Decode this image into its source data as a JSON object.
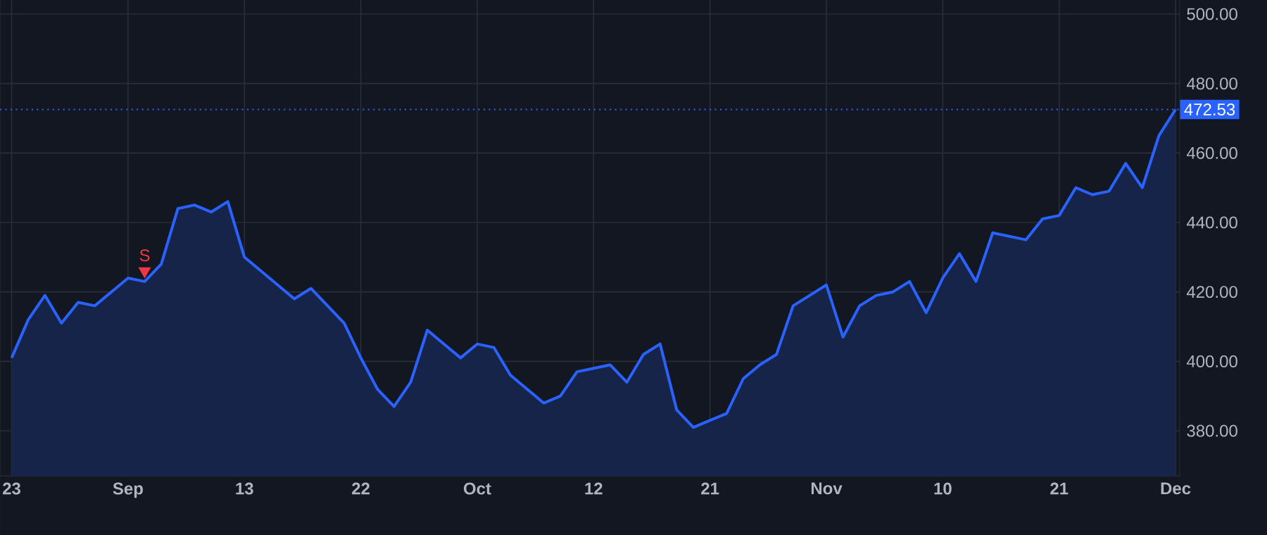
{
  "chart_data": {
    "type": "area",
    "categories": [
      "23",
      null,
      null,
      null,
      null,
      null,
      null,
      "Sep",
      null,
      null,
      null,
      null,
      null,
      null,
      "13",
      null,
      null,
      null,
      null,
      null,
      null,
      "22",
      null,
      null,
      null,
      null,
      null,
      null,
      "Oct",
      null,
      null,
      null,
      null,
      null,
      null,
      "12",
      null,
      null,
      null,
      null,
      null,
      null,
      "21",
      null,
      null,
      null,
      null,
      null,
      null,
      "Nov",
      null,
      null,
      null,
      null,
      null,
      null,
      "10",
      null,
      null,
      null,
      null,
      null,
      null,
      "21",
      null,
      null,
      null,
      null,
      null,
      null,
      "Dec"
    ],
    "series": [
      {
        "color": "#2962ff",
        "values": [
          401,
          412,
          419,
          411,
          417,
          416,
          420,
          424,
          423,
          428,
          444,
          445,
          443,
          446,
          430,
          426,
          422,
          418,
          421,
          416,
          411,
          401,
          392,
          387,
          394,
          409,
          405,
          401,
          405,
          404,
          396,
          392,
          388,
          390,
          397,
          398,
          399,
          394,
          402,
          405,
          386,
          381,
          383,
          385,
          395,
          399,
          402,
          416,
          419,
          422,
          407,
          416,
          419,
          420,
          423,
          414,
          424,
          431,
          423,
          437,
          436,
          435,
          441,
          442,
          450,
          448,
          449,
          457,
          450,
          465,
          472.53
        ]
      },
      {
        "type": "scatter",
        "name": "S",
        "color": "#f23645",
        "marker": "triangle",
        "values": [
          null,
          null,
          null,
          null,
          null,
          null,
          null,
          null,
          426,
          null,
          null,
          null,
          null,
          null,
          null,
          null,
          null,
          null,
          null,
          null,
          null,
          null,
          null,
          null,
          null,
          null,
          null,
          null,
          null,
          null,
          null,
          null,
          null,
          null,
          null,
          null,
          null,
          null,
          null,
          null,
          null,
          null,
          null,
          null,
          null,
          null,
          null,
          null,
          null,
          null,
          null,
          null,
          null,
          null,
          null,
          null,
          null,
          null,
          null,
          null,
          null,
          null,
          null,
          null,
          null,
          null,
          null,
          null,
          null,
          null,
          null
        ]
      }
    ],
    "ylim": [
      367,
      509.7
    ],
    "yticks": [
      {
        "value": 380,
        "label": "380.00"
      },
      {
        "value": 400,
        "label": "400.00"
      },
      {
        "value": 420,
        "label": "420.00"
      },
      {
        "value": 440,
        "label": "440.00"
      },
      {
        "value": 460,
        "label": "460.00"
      },
      {
        "value": 480,
        "label": "480.00"
      },
      {
        "value": 500,
        "label": "500.00"
      }
    ],
    "grid": true,
    "ref_lines": [
      {
        "axis": "y",
        "value": 472.53,
        "label": "472.53",
        "color": "#2962ff",
        "line_style": "dotted"
      }
    ]
  }
}
